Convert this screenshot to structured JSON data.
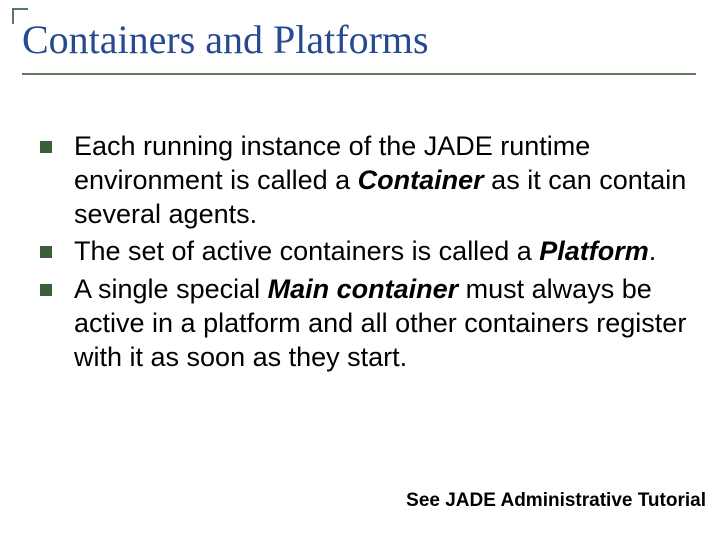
{
  "slide": {
    "title": "Containers and Platforms",
    "title_color": "#264a8f",
    "title_fontsize": 40,
    "title_font": "Times New Roman",
    "underline_color": "#5b7a5b",
    "corner_color": "#5b7a5b",
    "background_color": "#ffffff",
    "body_fontsize": 27,
    "body_color": "#000000",
    "bullet_color": "#3a5f3a",
    "bullet_size": 12,
    "bullets": [
      {
        "pre": "Each running instance of the JADE runtime environment is called a ",
        "emph": "Container",
        "post": " as it can contain several agents."
      },
      {
        "pre": "The set of active containers is called a ",
        "emph": "Platform",
        "post": "."
      },
      {
        "pre": "A single special ",
        "emph": "Main container",
        "post": " must always be active in a platform and all other containers register with it as soon as they start."
      }
    ],
    "footer": "See JADE Administrative Tutorial",
    "footer_fontsize": 19
  }
}
